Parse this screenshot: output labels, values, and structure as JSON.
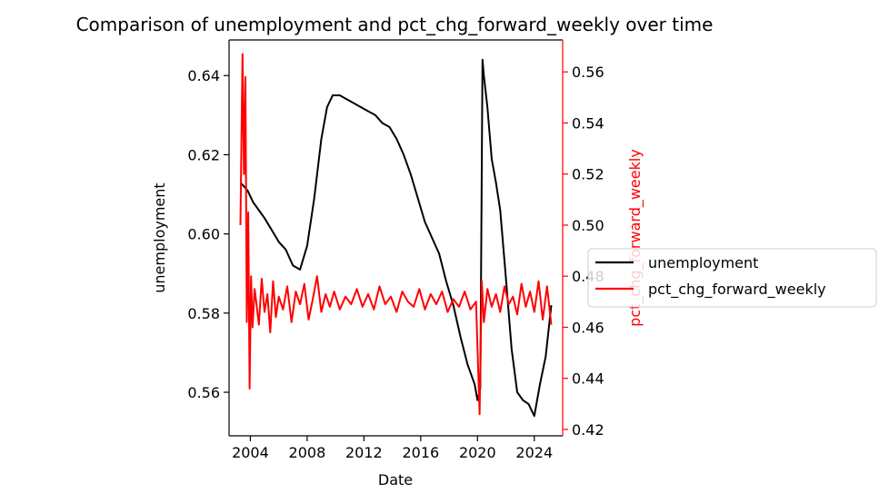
{
  "chart_data": {
    "type": "line",
    "title": "Comparison of unemployment and pct_chg_forward_weekly over time",
    "xlabel": "Date",
    "ylabel_left": "unemployment",
    "ylabel_right": "pct_chg_forward_weekly",
    "xlim": [
      2002.5,
      2026.0
    ],
    "ylim_left": [
      0.549,
      0.649
    ],
    "ylim_right": [
      0.4175,
      0.5725
    ],
    "x_ticks": [
      2004,
      2008,
      2012,
      2016,
      2020,
      2024
    ],
    "x_tick_labels": [
      "2004",
      "2008",
      "2012",
      "2016",
      "2020",
      "2024"
    ],
    "y_left_ticks": [
      0.56,
      0.58,
      0.6,
      0.62,
      0.64
    ],
    "y_left_tick_labels": [
      "0.56",
      "0.58",
      "0.60",
      "0.62",
      "0.64"
    ],
    "y_right_ticks": [
      0.42,
      0.44,
      0.46,
      0.48,
      0.5,
      0.52,
      0.54,
      0.56
    ],
    "y_right_tick_labels": [
      "0.42",
      "0.44",
      "0.46",
      "0.48",
      "0.50",
      "0.52",
      "0.54",
      "0.56"
    ],
    "grid": false,
    "legend_position": "right",
    "series": [
      {
        "name": "unemployment",
        "axis": "left",
        "color": "#000000",
        "x": [
          2003.3,
          2003.8,
          2004.2,
          2004.6,
          2005.0,
          2005.5,
          2006.0,
          2006.5,
          2007.0,
          2007.5,
          2008.0,
          2008.5,
          2009.0,
          2009.4,
          2009.8,
          2010.3,
          2010.8,
          2011.3,
          2011.8,
          2012.3,
          2012.8,
          2013.3,
          2013.8,
          2014.3,
          2014.8,
          2015.3,
          2015.8,
          2016.3,
          2016.8,
          2017.3,
          2017.8,
          2018.3,
          2018.8,
          2019.3,
          2019.8,
          2020.0,
          2020.2,
          2020.35,
          2020.45,
          2020.7,
          2021.0,
          2021.3,
          2021.6,
          2022.0,
          2022.4,
          2022.8,
          2023.2,
          2023.6,
          2024.0,
          2024.4,
          2024.8,
          2025.2
        ],
        "y": [
          0.613,
          0.611,
          0.608,
          0.606,
          0.604,
          0.601,
          0.598,
          0.596,
          0.592,
          0.591,
          0.597,
          0.609,
          0.624,
          0.632,
          0.635,
          0.635,
          0.634,
          0.633,
          0.632,
          0.631,
          0.63,
          0.628,
          0.627,
          0.624,
          0.62,
          0.615,
          0.609,
          0.603,
          0.599,
          0.595,
          0.588,
          0.582,
          0.574,
          0.567,
          0.562,
          0.558,
          0.561,
          0.644,
          0.64,
          0.632,
          0.619,
          0.613,
          0.606,
          0.589,
          0.571,
          0.56,
          0.558,
          0.557,
          0.554,
          0.562,
          0.569,
          0.582
        ]
      },
      {
        "name": "pct_chg_forward_weekly",
        "axis": "right",
        "color": "#ff0000",
        "x": [
          2003.3,
          2003.45,
          2003.55,
          2003.65,
          2003.75,
          2003.85,
          2003.95,
          2004.05,
          2004.15,
          2004.3,
          2004.45,
          2004.6,
          2004.8,
          2005.0,
          2005.2,
          2005.4,
          2005.6,
          2005.8,
          2006.0,
          2006.3,
          2006.6,
          2006.9,
          2007.2,
          2007.5,
          2007.8,
          2008.1,
          2008.4,
          2008.7,
          2009.0,
          2009.3,
          2009.6,
          2009.9,
          2010.3,
          2010.7,
          2011.1,
          2011.5,
          2011.9,
          2012.3,
          2012.7,
          2013.1,
          2013.5,
          2013.9,
          2014.3,
          2014.7,
          2015.1,
          2015.5,
          2015.9,
          2016.3,
          2016.7,
          2017.1,
          2017.5,
          2017.9,
          2018.3,
          2018.7,
          2019.1,
          2019.5,
          2019.9,
          2020.15,
          2020.3,
          2020.45,
          2020.7,
          2021.0,
          2021.3,
          2021.6,
          2021.9,
          2022.2,
          2022.5,
          2022.8,
          2023.1,
          2023.4,
          2023.7,
          2024.0,
          2024.3,
          2024.6,
          2024.9,
          2025.2
        ],
        "y": [
          0.5,
          0.567,
          0.52,
          0.558,
          0.462,
          0.505,
          0.436,
          0.48,
          0.46,
          0.475,
          0.468,
          0.461,
          0.479,
          0.466,
          0.473,
          0.458,
          0.478,
          0.464,
          0.472,
          0.467,
          0.476,
          0.462,
          0.474,
          0.469,
          0.477,
          0.463,
          0.471,
          0.48,
          0.466,
          0.473,
          0.468,
          0.474,
          0.467,
          0.472,
          0.469,
          0.475,
          0.468,
          0.473,
          0.467,
          0.476,
          0.469,
          0.472,
          0.466,
          0.474,
          0.47,
          0.468,
          0.475,
          0.467,
          0.473,
          0.469,
          0.474,
          0.466,
          0.471,
          0.468,
          0.474,
          0.467,
          0.47,
          0.426,
          0.478,
          0.462,
          0.475,
          0.468,
          0.473,
          0.466,
          0.476,
          0.469,
          0.472,
          0.465,
          0.477,
          0.468,
          0.474,
          0.466,
          0.478,
          0.463,
          0.476,
          0.461
        ]
      }
    ]
  }
}
